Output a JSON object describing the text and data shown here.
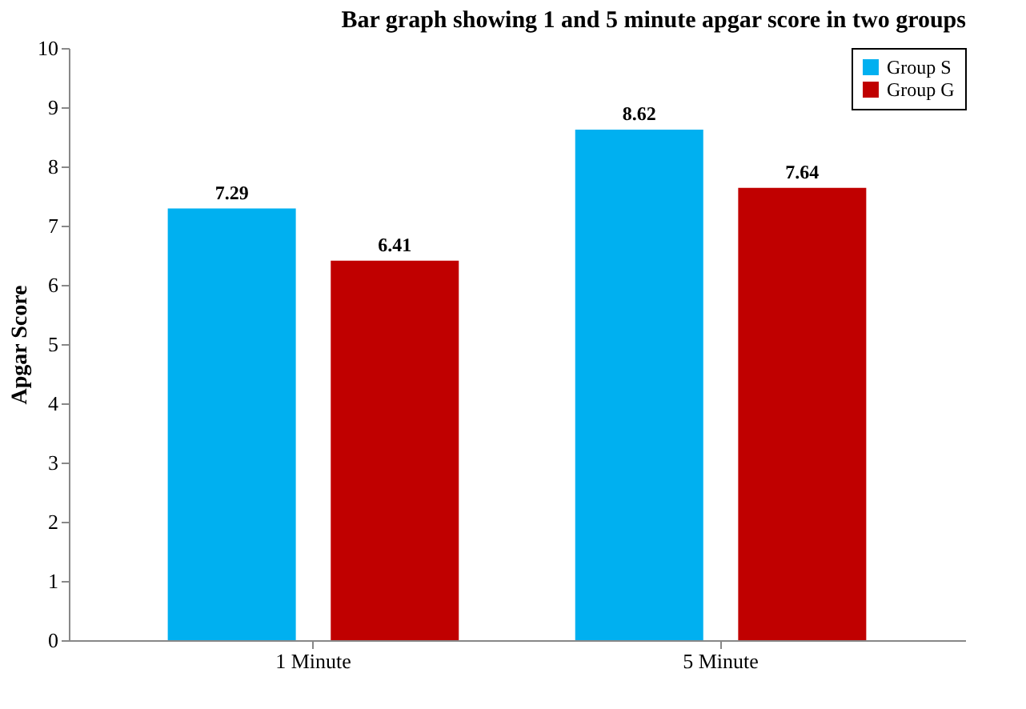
{
  "chart_data": {
    "type": "bar",
    "title": "Bar graph showing 1 and 5 minute apgar score in two groups",
    "ylabel": "Apgar Score",
    "categories": [
      "1 Minute",
      "5 Minute"
    ],
    "series": [
      {
        "name": "Group S",
        "color": "#00b0f0",
        "values": [
          7.29,
          8.62
        ]
      },
      {
        "name": "Group G",
        "color": "#c00000",
        "values": [
          6.41,
          7.64
        ]
      }
    ],
    "ylim": [
      0,
      10
    ],
    "yticks": [
      0,
      1,
      2,
      3,
      4,
      5,
      6,
      7,
      8,
      9,
      10
    ],
    "grid": false,
    "legend": "top right",
    "data_labels": true
  }
}
